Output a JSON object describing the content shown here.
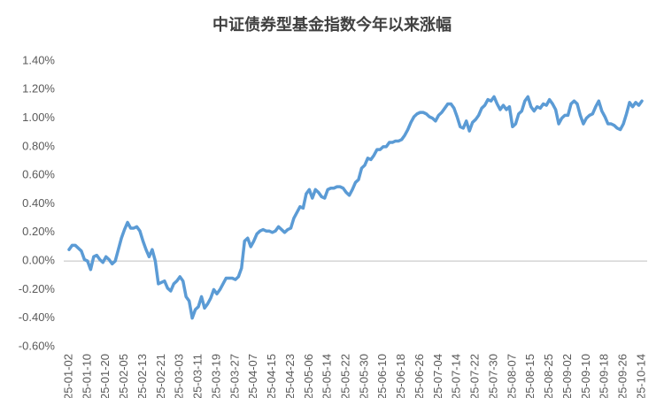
{
  "chart_data": {
    "type": "line",
    "title": "中证债券型基金指数今年以来涨幅",
    "color": "#5b9bd5",
    "categories": [
      "2025-01-02",
      null,
      null,
      null,
      null,
      null,
      "2025-01-10",
      null,
      null,
      null,
      null,
      null,
      "2025-01-20",
      null,
      null,
      null,
      null,
      null,
      "2025-02-05",
      null,
      null,
      null,
      null,
      null,
      "2025-02-13",
      null,
      null,
      null,
      null,
      null,
      "2025-02-21",
      null,
      null,
      null,
      null,
      null,
      "2025-03-03",
      null,
      null,
      null,
      null,
      null,
      "2025-03-11",
      null,
      null,
      null,
      null,
      null,
      "2025-03-19",
      null,
      null,
      null,
      null,
      null,
      "2025-03-27",
      null,
      null,
      null,
      null,
      null,
      "2025-04-07",
      null,
      null,
      null,
      null,
      null,
      "2025-04-15",
      null,
      null,
      null,
      null,
      null,
      "2025-04-23",
      null,
      null,
      null,
      null,
      null,
      "2025-05-06",
      null,
      null,
      null,
      null,
      null,
      "2025-05-14",
      null,
      null,
      null,
      null,
      null,
      "2025-05-22",
      null,
      null,
      null,
      null,
      null,
      "2025-05-30",
      null,
      null,
      null,
      null,
      null,
      "2025-06-10",
      null,
      null,
      null,
      null,
      null,
      "2025-06-18",
      null,
      null,
      null,
      null,
      null,
      "2025-06-26",
      null,
      null,
      null,
      null,
      null,
      "2025-07-04",
      null,
      null,
      null,
      null,
      null,
      "2025-07-14",
      null,
      null,
      null,
      null,
      null,
      "2025-07-22",
      null,
      null,
      null,
      null,
      null,
      "2025-07-30",
      null,
      null,
      null,
      null,
      null,
      "2025-08-07",
      null,
      null,
      null,
      null,
      null,
      "2025-08-15",
      null,
      null,
      null,
      null,
      null,
      "2025-08-25",
      null,
      null,
      null,
      null,
      null,
      "2025-09-02",
      null,
      null,
      null,
      null,
      null,
      "2025-09-10",
      null,
      null,
      null,
      null,
      null,
      "2025-09-18",
      null,
      null,
      null,
      null,
      null,
      "2025-09-26",
      null,
      null,
      null,
      null,
      null,
      "2025-10-14"
    ],
    "values": [
      0.08,
      0.11,
      0.11,
      0.09,
      0.07,
      0.01,
      0.0,
      -0.06,
      0.03,
      0.04,
      0.01,
      -0.01,
      0.03,
      0.01,
      -0.02,
      0.0,
      0.08,
      0.16,
      0.22,
      0.27,
      0.23,
      0.23,
      0.24,
      0.21,
      0.14,
      0.08,
      0.03,
      0.08,
      0.0,
      -0.16,
      -0.15,
      -0.14,
      -0.19,
      -0.21,
      -0.16,
      -0.14,
      -0.11,
      -0.14,
      -0.25,
      -0.28,
      -0.4,
      -0.34,
      -0.32,
      -0.25,
      -0.33,
      -0.3,
      -0.26,
      -0.2,
      -0.23,
      -0.2,
      -0.16,
      -0.12,
      -0.12,
      -0.12,
      -0.13,
      -0.11,
      -0.05,
      0.14,
      0.16,
      0.1,
      0.14,
      0.19,
      0.21,
      0.22,
      0.21,
      0.21,
      0.2,
      0.21,
      0.24,
      0.22,
      0.2,
      0.22,
      0.23,
      0.3,
      0.34,
      0.38,
      0.37,
      0.47,
      0.5,
      0.44,
      0.5,
      0.48,
      0.45,
      0.44,
      0.5,
      0.51,
      0.51,
      0.52,
      0.52,
      0.51,
      0.48,
      0.46,
      0.5,
      0.55,
      0.57,
      0.65,
      0.67,
      0.72,
      0.71,
      0.74,
      0.78,
      0.78,
      0.8,
      0.8,
      0.83,
      0.83,
      0.84,
      0.84,
      0.85,
      0.88,
      0.92,
      0.97,
      1.01,
      1.03,
      1.04,
      1.04,
      1.03,
      1.01,
      1.0,
      0.98,
      1.02,
      1.04,
      1.07,
      1.1,
      1.1,
      1.07,
      1.01,
      0.94,
      0.93,
      0.98,
      0.91,
      0.97,
      0.99,
      1.02,
      1.07,
      1.09,
      1.13,
      1.12,
      1.15,
      1.1,
      1.06,
      1.09,
      1.06,
      1.08,
      0.94,
      0.96,
      1.03,
      1.05,
      1.12,
      1.15,
      1.08,
      1.05,
      1.08,
      1.07,
      1.1,
      1.09,
      1.13,
      1.1,
      1.06,
      0.96,
      1.0,
      1.02,
      1.02,
      1.1,
      1.12,
      1.1,
      1.02,
      0.96,
      1.0,
      1.02,
      1.03,
      1.08,
      1.12,
      1.05,
      1.01,
      0.96,
      0.96,
      0.95,
      0.93,
      0.92,
      0.96,
      1.03,
      1.11,
      1.08,
      1.11,
      1.09,
      1.12
    ],
    "ylim": [
      -0.6,
      1.4
    ],
    "yticks": [
      {
        "value": -0.6,
        "label": "-0.60%"
      },
      {
        "value": -0.4,
        "label": "-0.40%"
      },
      {
        "value": -0.2,
        "label": "-0.20%"
      },
      {
        "value": 0,
        "label": "0.00%"
      },
      {
        "value": 0.2,
        "label": "0.20%"
      },
      {
        "value": 0.4,
        "label": "0.40%"
      },
      {
        "value": 0.6,
        "label": "0.60%"
      },
      {
        "value": 0.8,
        "label": "0.80%"
      },
      {
        "value": 1.0,
        "label": "1.00%"
      },
      {
        "value": 1.2,
        "label": "1.20%"
      },
      {
        "value": 1.4,
        "label": "1.40%"
      }
    ],
    "grid": false
  }
}
